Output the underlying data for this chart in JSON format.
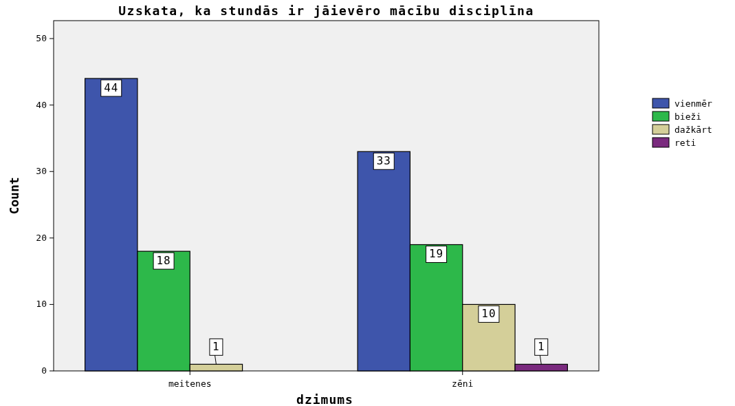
{
  "chart_data": {
    "type": "bar",
    "title": "Uzskata, ka stundās ir jāievēro mācību disciplīna",
    "xlabel": "dzimums",
    "ylabel": "Count",
    "categories": [
      "meitenes",
      "zēni"
    ],
    "series": [
      {
        "name": "vienmēr",
        "color": "#3e55ab",
        "values": [
          44,
          33
        ]
      },
      {
        "name": "bieži",
        "color": "#2db84a",
        "values": [
          18,
          19
        ]
      },
      {
        "name": "dažkārt",
        "color": "#d4cf99",
        "values": [
          1,
          10
        ]
      },
      {
        "name": "reti",
        "color": "#7a2a7e",
        "values": [
          null,
          1
        ]
      }
    ],
    "ylim": [
      0,
      52.7
    ],
    "yticks": [
      0,
      10,
      20,
      30,
      40,
      50
    ],
    "data_labels": true,
    "legend": "right",
    "grid": false
  }
}
